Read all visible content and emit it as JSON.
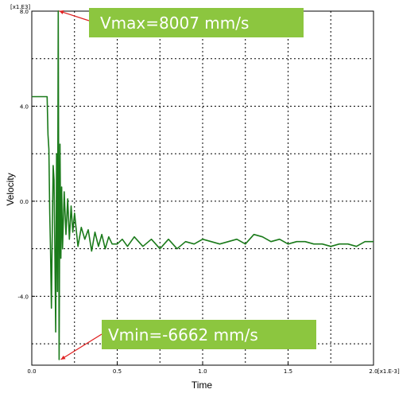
{
  "chart_data": {
    "type": "line",
    "title": "",
    "xlabel": "Time",
    "ylabel": "Velocity",
    "x_multiplier_label": "[x1.E-3]",
    "y_multiplier_label": "[x1.E3]",
    "xlim": [
      0.0,
      2.0
    ],
    "ylim": [
      -6.9,
      8.0
    ],
    "x_ticks": [
      "0.0",
      "0.5",
      "1.0",
      "1.5",
      "2.0"
    ],
    "y_ticks": [
      "-4.0",
      "0.0",
      "4.0",
      "8.0"
    ],
    "grid": true,
    "annotations": [
      {
        "text": "Vmax=8007 mm/s",
        "target": [
          0.16,
          8.007
        ]
      },
      {
        "text": "Vmin=-6662 mm/s",
        "target": [
          0.17,
          -6.662
        ]
      }
    ],
    "series": [
      {
        "color": "#1a7a1a",
        "x": [
          0.0,
          0.04,
          0.09,
          0.095,
          0.1,
          0.105,
          0.11,
          0.115,
          0.12,
          0.125,
          0.13,
          0.135,
          0.14,
          0.145,
          0.15,
          0.155,
          0.16,
          0.165,
          0.17,
          0.175,
          0.18,
          0.19,
          0.2,
          0.21,
          0.22,
          0.23,
          0.24,
          0.25,
          0.27,
          0.29,
          0.31,
          0.33,
          0.35,
          0.37,
          0.39,
          0.41,
          0.43,
          0.45,
          0.47,
          0.5,
          0.53,
          0.56,
          0.6,
          0.65,
          0.7,
          0.75,
          0.8,
          0.85,
          0.9,
          0.95,
          1.0,
          1.05,
          1.1,
          1.15,
          1.2,
          1.25,
          1.3,
          1.35,
          1.4,
          1.45,
          1.5,
          1.55,
          1.6,
          1.65,
          1.7,
          1.75,
          1.8,
          1.85,
          1.9,
          1.95,
          2.0
        ],
        "values": [
          4.4,
          4.4,
          4.4,
          2.8,
          2.2,
          -0.5,
          -2.1,
          -4.5,
          -1.2,
          1.5,
          0.9,
          -2.0,
          -5.5,
          2.0,
          -3.8,
          8.007,
          -6.662,
          2.4,
          -2.4,
          0.6,
          -2.0,
          0.4,
          -1.4,
          0.1,
          -1.6,
          -0.2,
          -1.3,
          -0.5,
          -1.9,
          -1.1,
          -1.6,
          -1.2,
          -2.1,
          -1.3,
          -1.9,
          -1.4,
          -2.0,
          -1.5,
          -1.8,
          -1.8,
          -1.6,
          -1.9,
          -1.5,
          -1.9,
          -1.6,
          -2.0,
          -1.6,
          -2.0,
          -1.7,
          -1.8,
          -1.6,
          -1.7,
          -1.8,
          -1.7,
          -1.6,
          -1.8,
          -1.4,
          -1.5,
          -1.7,
          -1.6,
          -1.8,
          -1.7,
          -1.7,
          -1.8,
          -1.8,
          -1.9,
          -1.8,
          -1.8,
          -1.9,
          -1.7,
          -1.7
        ]
      }
    ]
  }
}
